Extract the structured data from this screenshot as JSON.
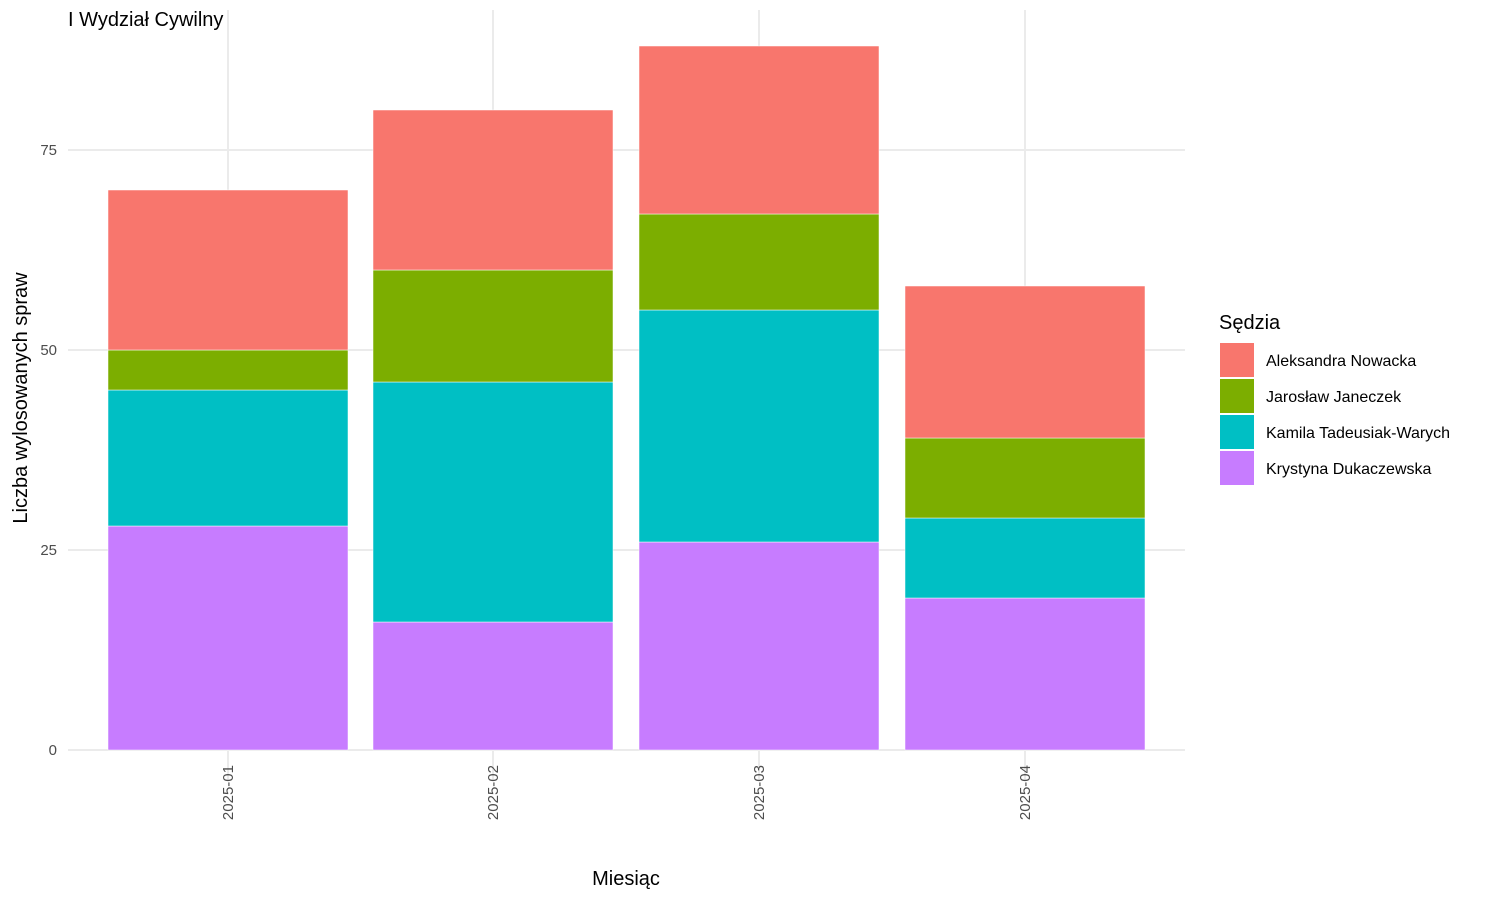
{
  "chart_data": {
    "type": "bar",
    "stacked": true,
    "title": "I Wydział Cywilny",
    "xlabel": "Miesiąc",
    "ylabel": "Liczba wylosowanych spraw",
    "categories": [
      "2025-01",
      "2025-02",
      "2025-03",
      "2025-04"
    ],
    "ylim": [
      0,
      90
    ],
    "yticks": [
      0,
      25,
      50,
      75
    ],
    "grid": true,
    "legend": {
      "title": "Sędzia",
      "position": "right"
    },
    "series": [
      {
        "name": "Krystyna Dukaczewska",
        "color": "#C77CFF",
        "values": [
          28,
          16,
          26,
          19
        ]
      },
      {
        "name": "Kamila Tadeusiak-Warych",
        "color": "#00BFC4",
        "values": [
          17,
          30,
          29,
          10
        ]
      },
      {
        "name": "Jarosław Janeczek",
        "color": "#7CAE00",
        "values": [
          5,
          14,
          12,
          10
        ]
      },
      {
        "name": "Aleksandra Nowacka",
        "color": "#F8766D",
        "values": [
          20,
          20,
          21,
          19
        ]
      }
    ]
  }
}
